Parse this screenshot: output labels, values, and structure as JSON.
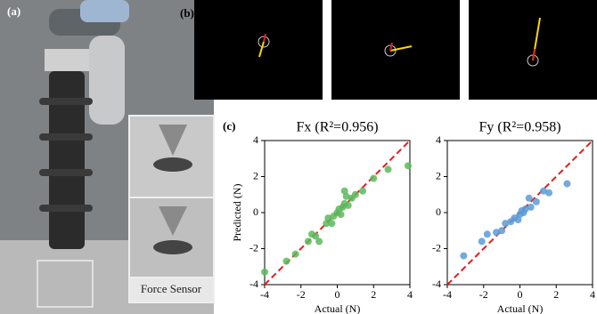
{
  "labels": {
    "a": "(a)",
    "b": "(b)",
    "c": "(c)",
    "inset": "Force Sensor"
  },
  "chart_data": [
    {
      "type": "scatter",
      "title": "Fx (R²=0.956)",
      "xlabel": "Actual (N)",
      "ylabel": "Predicted (N)",
      "color": "#5cb85c",
      "x": [
        -4,
        -2.8,
        -2.3,
        -1.6,
        -1.4,
        -1.2,
        -1.0,
        -0.6,
        -0.5,
        -0.3,
        -0.2,
        0,
        0.1,
        0.2,
        0.3,
        0.4,
        0.4,
        0.5,
        0.6,
        0.8,
        1.0,
        1.4,
        2.0,
        2.8,
        3.9
      ],
      "values": [
        -3.3,
        -2.7,
        -2.3,
        -1.6,
        -1.2,
        -1.3,
        -1.6,
        -0.6,
        -0.3,
        -0.6,
        -0.2,
        0,
        0.2,
        -0.1,
        0.3,
        0.5,
        1.2,
        0.9,
        0.4,
        0.8,
        1.0,
        1.2,
        1.9,
        2.4,
        2.6
      ],
      "xlim": [
        -4,
        4
      ],
      "ylim": [
        -4,
        4
      ],
      "xticks": [
        -4,
        -2,
        0,
        2,
        4
      ],
      "yticks": [
        -4,
        -2,
        0,
        2,
        4
      ]
    },
    {
      "type": "scatter",
      "title": "Fy (R²=0.958)",
      "xlabel": "Actual (N)",
      "color": "#5b9bd5",
      "x": [
        -3.1,
        -2.1,
        -1.8,
        -1.3,
        -1.0,
        -0.8,
        -0.5,
        -0.3,
        -0.1,
        0,
        0.1,
        0.2,
        0.3,
        0.5,
        0.6,
        0.9,
        1.3,
        1.6,
        2.6
      ],
      "values": [
        -2.4,
        -1.6,
        -1.2,
        -1.1,
        -1.0,
        -0.6,
        -0.5,
        -0.3,
        -0.4,
        -0.1,
        0.1,
        0.0,
        0.2,
        0.8,
        0.3,
        0.6,
        1.2,
        1.1,
        1.6
      ],
      "xlim": [
        -4,
        4
      ],
      "ylim": [
        -4,
        4
      ],
      "xticks": [
        -4,
        -2,
        0,
        2,
        4
      ],
      "yticks": [
        -4,
        -2,
        0,
        2,
        4
      ]
    }
  ]
}
